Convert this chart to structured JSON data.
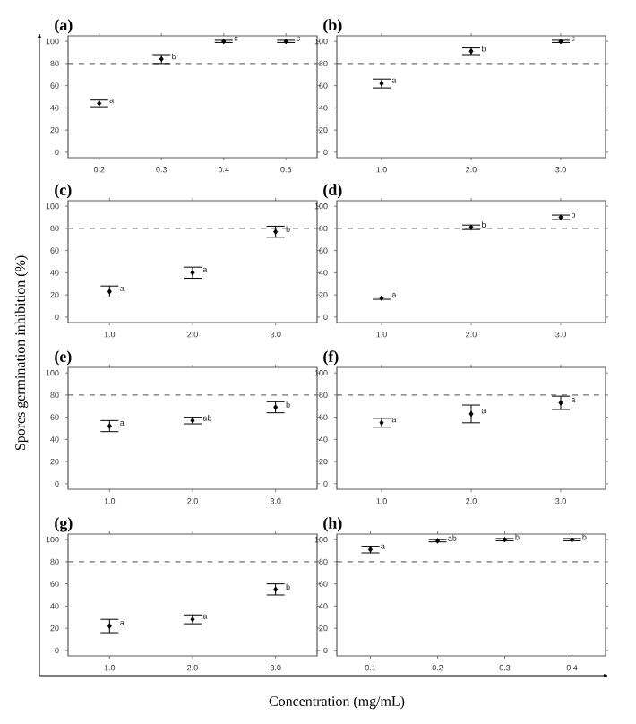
{
  "chart_data": [
    {
      "type": "scatter",
      "title": "(a)",
      "categories": [
        "0.2",
        "0.3",
        "0.4",
        "0.5"
      ],
      "values": [
        44,
        84,
        100,
        100
      ],
      "errors": [
        3,
        4,
        1,
        1
      ],
      "color": "#000000",
      "marker": "diamond",
      "ylim": [
        -5,
        105
      ],
      "yticks": [
        0,
        20,
        40,
        60,
        80,
        100
      ],
      "ref_lines": [
        {
          "axis": "y",
          "value": 80,
          "line_style": "dashed"
        }
      ],
      "annotations": [
        {
          "text": "a",
          "x": "0.2",
          "y": 44
        },
        {
          "text": "b",
          "x": "0.3",
          "y": 84
        },
        {
          "text": "c",
          "x": "0.4",
          "y": 100
        },
        {
          "text": "c",
          "x": "0.5",
          "y": 100
        }
      ]
    },
    {
      "type": "scatter",
      "title": "(b)",
      "categories": [
        "1.0",
        "2.0",
        "3.0"
      ],
      "values": [
        62,
        91,
        100
      ],
      "errors": [
        4,
        3,
        1
      ],
      "color": "#000000",
      "marker": "diamond",
      "ylim": [
        -5,
        105
      ],
      "yticks": [
        0,
        20,
        40,
        60,
        80,
        100
      ],
      "ref_lines": [
        {
          "axis": "y",
          "value": 80,
          "line_style": "dashed"
        }
      ],
      "annotations": [
        {
          "text": "a",
          "x": "1.0",
          "y": 62
        },
        {
          "text": "b",
          "x": "2.0",
          "y": 91
        },
        {
          "text": "c",
          "x": "3.0",
          "y": 100
        }
      ]
    },
    {
      "type": "scatter",
      "title": "(c)",
      "categories": [
        "1.0",
        "2.0",
        "3.0"
      ],
      "values": [
        23,
        40,
        77
      ],
      "errors": [
        5,
        5,
        5
      ],
      "color": "#000000",
      "marker": "diamond",
      "ylim": [
        -5,
        105
      ],
      "yticks": [
        0,
        20,
        40,
        60,
        80,
        100
      ],
      "ref_lines": [
        {
          "axis": "y",
          "value": 80,
          "line_style": "dashed"
        }
      ],
      "annotations": [
        {
          "text": "a",
          "x": "1.0",
          "y": 23
        },
        {
          "text": "a",
          "x": "2.0",
          "y": 40
        },
        {
          "text": "b",
          "x": "3.0",
          "y": 77
        }
      ]
    },
    {
      "type": "scatter",
      "title": "(d)",
      "categories": [
        "1.0",
        "2.0",
        "3.0"
      ],
      "values": [
        17,
        81,
        90
      ],
      "errors": [
        1,
        2,
        2
      ],
      "color": "#000000",
      "marker": "diamond",
      "ylim": [
        -5,
        105
      ],
      "yticks": [
        0,
        20,
        40,
        60,
        80,
        100
      ],
      "ref_lines": [
        {
          "axis": "y",
          "value": 80,
          "line_style": "dashed"
        }
      ],
      "annotations": [
        {
          "text": "a",
          "x": "1.0",
          "y": 17
        },
        {
          "text": "b",
          "x": "2.0",
          "y": 81
        },
        {
          "text": "b",
          "x": "3.0",
          "y": 90
        }
      ]
    },
    {
      "type": "scatter",
      "title": "(e)",
      "ylabel": "Spores germination inhibition (%)",
      "categories": [
        "1.0",
        "2.0",
        "3.0"
      ],
      "values": [
        52,
        57,
        69
      ],
      "errors": [
        5,
        3,
        5
      ],
      "color": "#000000",
      "marker": "diamond",
      "ylim": [
        -5,
        105
      ],
      "yticks": [
        0,
        20,
        40,
        60,
        80,
        100
      ],
      "ref_lines": [
        {
          "axis": "y",
          "value": 80,
          "line_style": "dashed"
        }
      ],
      "annotations": [
        {
          "text": "a",
          "x": "1.0",
          "y": 52
        },
        {
          "text": "ab",
          "x": "2.0",
          "y": 57
        },
        {
          "text": "b",
          "x": "3.0",
          "y": 69
        }
      ]
    },
    {
      "type": "scatter",
      "title": "(f)",
      "categories": [
        "1.0",
        "2.0",
        "3.0"
      ],
      "values": [
        55,
        63,
        73
      ],
      "errors": [
        4,
        8,
        6
      ],
      "color": "#000000",
      "marker": "diamond",
      "ylim": [
        -5,
        105
      ],
      "yticks": [
        0,
        20,
        40,
        60,
        80,
        100
      ],
      "ref_lines": [
        {
          "axis": "y",
          "value": 80,
          "line_style": "dashed"
        }
      ],
      "annotations": [
        {
          "text": "a",
          "x": "1.0",
          "y": 55
        },
        {
          "text": "a",
          "x": "2.0",
          "y": 63
        },
        {
          "text": "a",
          "x": "3.0",
          "y": 73
        }
      ]
    },
    {
      "type": "scatter",
      "title": "(g)",
      "categories": [
        "1.0",
        "2.0",
        "3.0"
      ],
      "values": [
        22,
        28,
        55
      ],
      "errors": [
        6,
        4,
        5
      ],
      "color": "#000000",
      "marker": "diamond",
      "ylim": [
        -5,
        105
      ],
      "yticks": [
        0,
        20,
        40,
        60,
        80,
        100
      ],
      "ref_lines": [
        {
          "axis": "y",
          "value": 80,
          "line_style": "dashed"
        }
      ],
      "annotations": [
        {
          "text": "a",
          "x": "1.0",
          "y": 22
        },
        {
          "text": "a",
          "x": "2.0",
          "y": 28
        },
        {
          "text": "b",
          "x": "3.0",
          "y": 55
        }
      ]
    },
    {
      "type": "scatter",
      "title": "(h)",
      "xlabel": "Concentration (mg/mL)",
      "categories": [
        "0.1",
        "0.2",
        "0.3",
        "0.4"
      ],
      "values": [
        91,
        99,
        100,
        100
      ],
      "errors": [
        3,
        1,
        1,
        1
      ],
      "color": "#000000",
      "marker": "diamond",
      "ylim": [
        -5,
        105
      ],
      "yticks": [
        0,
        20,
        40,
        60,
        80,
        100
      ],
      "ref_lines": [
        {
          "axis": "y",
          "value": 80,
          "line_style": "dashed"
        }
      ],
      "annotations": [
        {
          "text": "a",
          "x": "0.1",
          "y": 91
        },
        {
          "text": "ab",
          "x": "0.2",
          "y": 99
        },
        {
          "text": "b",
          "x": "0.3",
          "y": 100
        },
        {
          "text": "b",
          "x": "0.4",
          "y": 100
        }
      ]
    }
  ]
}
